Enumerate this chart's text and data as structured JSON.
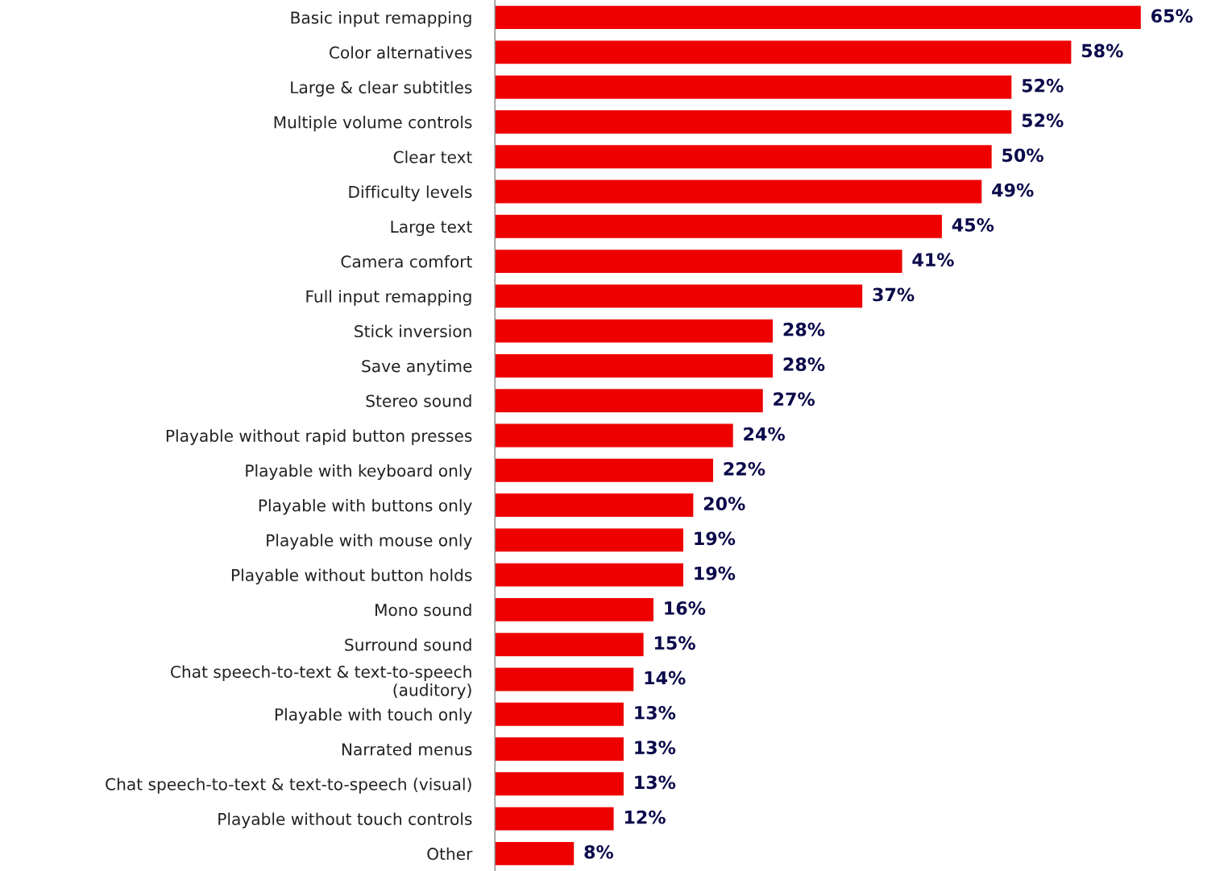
{
  "chart_data": {
    "type": "bar",
    "orientation": "horizontal",
    "grid": false,
    "legend": false,
    "tick_labels": "y",
    "categories": [
      "Basic input remapping",
      "Color alternatives",
      "Large & clear subtitles",
      "Multiple volume controls",
      "Clear text",
      "Difficulty levels",
      "Large text",
      "Camera comfort",
      "Full input remapping",
      "Stick inversion",
      "Save anytime",
      "Stereo sound",
      "Playable without rapid button presses",
      "Playable with keyboard only",
      "Playable with buttons only",
      "Playable with mouse only",
      "Playable without button holds",
      "Mono sound",
      "Surround sound",
      "Chat speech-to-text & text-to-speech\n(auditory)",
      "Playable with touch only",
      "Narrated menus",
      "Chat speech-to-text & text-to-speech (visual)",
      "Playable without touch controls",
      "Other"
    ],
    "series": [
      {
        "color": "#ee0000",
        "values": [
          65,
          58,
          52,
          52,
          50,
          49,
          45,
          41,
          37,
          28,
          28,
          27,
          24,
          22,
          20,
          19,
          19,
          16,
          15,
          14,
          13,
          13,
          13,
          12,
          8
        ],
        "value_labels": [
          "65%",
          "58%",
          "52%",
          "52%",
          "50%",
          "49%",
          "45%",
          "41%",
          "37%",
          "28%",
          "28%",
          "27%",
          "24%",
          "22%",
          "20%",
          "19%",
          "19%",
          "16%",
          "15%",
          "14%",
          "13%",
          "13%",
          "13%",
          "12%",
          "8%"
        ]
      }
    ]
  }
}
